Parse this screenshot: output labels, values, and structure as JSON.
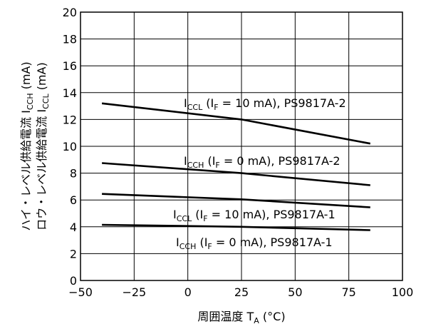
{
  "chart_data": {
    "type": "line",
    "title": "",
    "xlabel": "周囲温度 TA (°C)",
    "xlabel_main": "周囲温度 T",
    "xlabel_sub": "A",
    "xlabel_tail": " (°C)",
    "ylabel_line1": "ハイ・レベル供給電流 ICCH (mA)",
    "ylabel_line2": "ロウ・レベル供給電流 ICCL (mA)",
    "xlim": [
      -50,
      100
    ],
    "ylim": [
      0,
      20
    ],
    "xticks": [
      -50,
      -25,
      0,
      25,
      50,
      75,
      100
    ],
    "xtick_labels": [
      "−50",
      "−25",
      "0",
      "25",
      "50",
      "75",
      "100"
    ],
    "yticks": [
      0,
      2,
      4,
      6,
      8,
      10,
      12,
      14,
      16,
      18,
      20
    ],
    "ytick_labels": [
      "0",
      "2",
      "4",
      "6",
      "8",
      "10",
      "12",
      "14",
      "16",
      "18",
      "20"
    ],
    "grid": true,
    "series": [
      {
        "name": "ICCL (IF = 10 mA), PS9817A-2",
        "x": [
          -40,
          25,
          85
        ],
        "y": [
          13.2,
          12.0,
          10.2
        ]
      },
      {
        "name": "ICCH (IF = 0 mA), PS9817A-2",
        "x": [
          -40,
          25,
          85
        ],
        "y": [
          8.75,
          8.0,
          7.1
        ]
      },
      {
        "name": "ICCL (IF = 10 mA), PS9817A-1",
        "x": [
          -40,
          25,
          85
        ],
        "y": [
          6.45,
          6.05,
          5.45
        ]
      },
      {
        "name": "ICCH (IF = 0 mA), PS9817A-1",
        "x": [
          -40,
          25,
          85
        ],
        "y": [
          4.15,
          4.0,
          3.75
        ]
      }
    ],
    "series_labels": [
      {
        "main": "I",
        "sub1": "CCL",
        "mid": " (I",
        "sub2": "F",
        "tail": " = 10 mA), PS9817A-2"
      },
      {
        "main": "I",
        "sub1": "CCH",
        "mid": " (I",
        "sub2": "F",
        "tail": " = 0 mA), PS9817A-2"
      },
      {
        "main": "I",
        "sub1": "CCL",
        "mid": " (I",
        "sub2": "F",
        "tail": " = 10 mA), PS9817A-1"
      },
      {
        "main": "I",
        "sub1": "CCH",
        "mid": " (I",
        "sub2": "F",
        "tail": " = 0 mA), PS9817A-1"
      }
    ],
    "ylabel_parts": [
      {
        "main": "ハイ・レベル供給電流 I",
        "sub": "CCH",
        "tail": " (mA)"
      },
      {
        "main": "ロウ・レベル供給電流 I",
        "sub": "CCL",
        "tail": " (mA)"
      }
    ]
  }
}
